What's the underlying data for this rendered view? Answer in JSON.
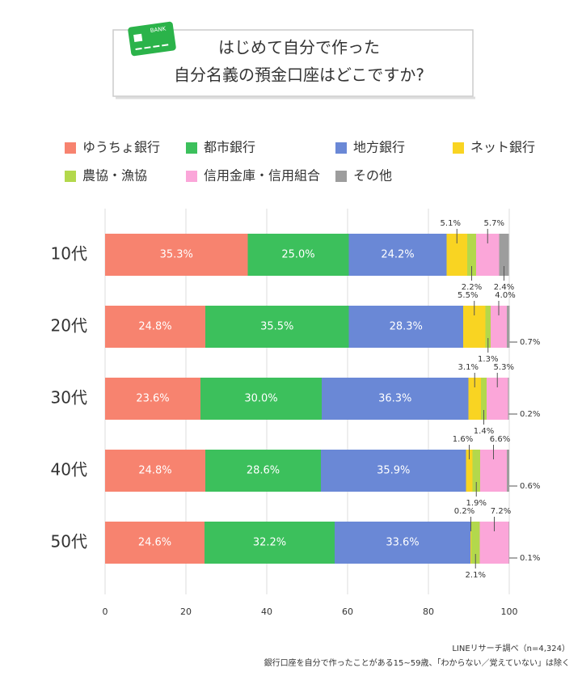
{
  "chart_data": {
    "type": "bar",
    "orientation": "horizontal",
    "stacked": true,
    "title": [
      "はじめて自分で作った",
      "自分名義の預金口座はどこですか?"
    ],
    "icon_text": "BANK",
    "categories": [
      "10代",
      "20代",
      "30代",
      "40代",
      "50代"
    ],
    "series": [
      {
        "name": "ゆうちょ銀行",
        "color": "#f7836f",
        "values": [
          35.3,
          24.8,
          23.6,
          24.8,
          24.6
        ],
        "value_labels": [
          "35.3%",
          "24.8%",
          "23.6%",
          "24.8%",
          "24.6%"
        ]
      },
      {
        "name": "都市銀行",
        "color": "#3cc05c",
        "values": [
          25.0,
          35.5,
          30.0,
          28.6,
          32.2
        ],
        "value_labels": [
          "25.0%",
          "35.5%",
          "30.0%",
          "28.6%",
          "32.2%"
        ]
      },
      {
        "name": "地方銀行",
        "color": "#6a88d6",
        "values": [
          24.2,
          28.3,
          36.3,
          35.9,
          33.6
        ],
        "value_labels": [
          "24.2%",
          "28.3%",
          "36.3%",
          "35.9%",
          "33.6%"
        ]
      },
      {
        "name": "ネット銀行",
        "color": "#f9d422",
        "values": [
          5.1,
          5.5,
          3.1,
          1.6,
          0.2
        ],
        "value_labels": [
          "5.1%",
          "5.5%",
          "3.1%",
          "1.6%",
          "0.2%"
        ]
      },
      {
        "name": "農協・漁協",
        "color": "#b3d84c",
        "values": [
          2.2,
          1.3,
          1.4,
          1.9,
          2.1
        ],
        "value_labels": [
          "2.2%",
          "1.3%",
          "1.4%",
          "1.9%",
          "2.1%"
        ]
      },
      {
        "name": "信用金庫・信用組合",
        "color": "#fba6d9",
        "values": [
          5.7,
          4.0,
          5.3,
          6.6,
          7.2
        ],
        "value_labels": [
          "5.7%",
          "4.0%",
          "5.3%",
          "6.6%",
          "7.2%"
        ]
      },
      {
        "name": "その他",
        "color": "#9d9d9d",
        "values": [
          2.4,
          0.7,
          0.2,
          0.6,
          0.1
        ],
        "value_labels": [
          "2.4%",
          "0.7%",
          "0.2%",
          "0.6%",
          "0.1%"
        ]
      }
    ],
    "xlim": [
      0,
      100
    ],
    "xticks": [
      0,
      20,
      40,
      60,
      80,
      100
    ],
    "grid": true,
    "source": "LINEリサーチ調べ（n=4,324）",
    "note": "銀行口座を自分で作ったことがある15~59歳、「わからない／覚えていない」は除く"
  }
}
